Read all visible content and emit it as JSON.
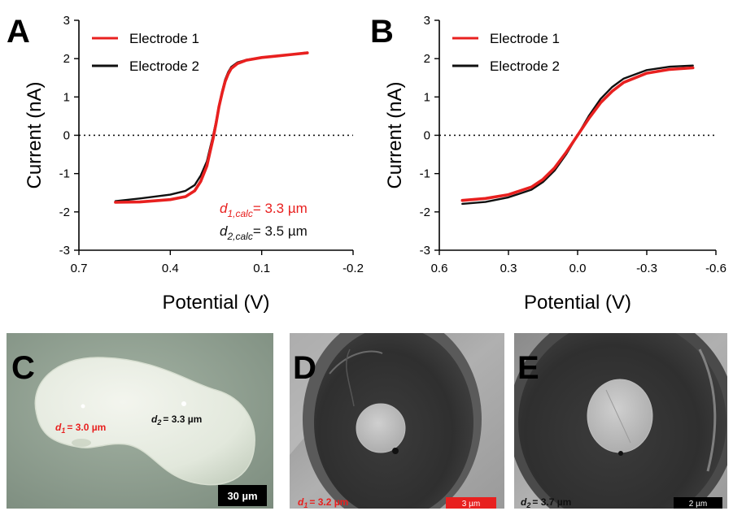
{
  "colors": {
    "electrode1": "#e8201f",
    "electrode2": "#101010"
  },
  "panels": {
    "A": {
      "letter": "A"
    },
    "B": {
      "letter": "B"
    },
    "C": {
      "letter": "C",
      "d1_label": "= 3.0 µm",
      "d2_label": "= 3.3 µm",
      "scale_bar": "30 µm"
    },
    "D": {
      "letter": "D",
      "d1_label": "= 3.2 µm",
      "scale_bar": "3 µm"
    },
    "E": {
      "letter": "E",
      "d2_label": "= 3.7 µm",
      "scale_bar": "2 µm"
    }
  },
  "calc_labels": {
    "d1_value": "= 3.3 µm",
    "d2_value": "= 3.5 µm",
    "d1_sub": "1,calc",
    "d2_sub": "2,calc"
  },
  "chart_data": [
    {
      "id": "A",
      "type": "line",
      "xlabel": "Potential (V)",
      "ylabel": "Current  (nA)",
      "xlim": [
        0.7,
        -0.2
      ],
      "ylim": [
        -3,
        3
      ],
      "xticks": [
        "0.7",
        "0.4",
        "0.1",
        "-0.2"
      ],
      "xtick_values": [
        0.7,
        0.4,
        0.1,
        -0.2
      ],
      "yticks": [
        "3",
        "2",
        "1",
        "0",
        "-1",
        "-2",
        "-3"
      ],
      "ytick_values": [
        3,
        2,
        1,
        0,
        -1,
        -2,
        -3
      ],
      "zero_line": "dotted",
      "legend": "top-left",
      "series": [
        {
          "name": "Electrode 1",
          "x": [
            0.58,
            0.5,
            0.4,
            0.35,
            0.32,
            0.3,
            0.28,
            0.27,
            0.26,
            0.25,
            0.24,
            0.23,
            0.22,
            0.21,
            0.2,
            0.18,
            0.15,
            0.1,
            0.05,
            0.0,
            -0.05
          ],
          "y": [
            -1.75,
            -1.74,
            -1.68,
            -1.6,
            -1.45,
            -1.2,
            -0.8,
            -0.45,
            -0.1,
            0.3,
            0.75,
            1.1,
            1.4,
            1.6,
            1.74,
            1.87,
            1.96,
            2.03,
            2.07,
            2.11,
            2.15
          ]
        },
        {
          "name": "Electrode 2",
          "x": [
            0.58,
            0.5,
            0.4,
            0.35,
            0.32,
            0.3,
            0.28,
            0.27,
            0.26,
            0.25,
            0.24,
            0.23,
            0.22,
            0.21,
            0.2,
            0.18,
            0.15,
            0.1,
            0.05,
            0.0,
            -0.05
          ],
          "y": [
            -1.72,
            -1.65,
            -1.55,
            -1.45,
            -1.3,
            -1.05,
            -0.68,
            -0.35,
            -0.02,
            0.35,
            0.78,
            1.15,
            1.45,
            1.65,
            1.78,
            1.9,
            1.97,
            2.03,
            2.07,
            2.11,
            2.16
          ]
        }
      ]
    },
    {
      "id": "B",
      "type": "line",
      "xlabel": "Potential (V)",
      "ylabel": "Current  (nA)",
      "xlim": [
        0.6,
        -0.6
      ],
      "ylim": [
        -3,
        3
      ],
      "xticks": [
        "0.6",
        "0.3",
        "0.0",
        "-0.3",
        "-0.6"
      ],
      "xtick_values": [
        0.6,
        0.3,
        0.0,
        -0.3,
        -0.6
      ],
      "yticks": [
        "3",
        "2",
        "1",
        "0",
        "-1",
        "-2",
        "-3"
      ],
      "ytick_values": [
        3,
        2,
        1,
        0,
        -1,
        -2,
        -3
      ],
      "zero_line": "dotted",
      "legend": "top-left",
      "series": [
        {
          "name": "Electrode 1",
          "x": [
            0.5,
            0.4,
            0.3,
            0.2,
            0.15,
            0.1,
            0.05,
            0.0,
            -0.05,
            -0.1,
            -0.15,
            -0.2,
            -0.3,
            -0.4,
            -0.5
          ],
          "y": [
            -1.7,
            -1.65,
            -1.55,
            -1.35,
            -1.15,
            -0.85,
            -0.45,
            0.0,
            0.45,
            0.85,
            1.15,
            1.38,
            1.62,
            1.72,
            1.76
          ]
        },
        {
          "name": "Electrode 2",
          "x": [
            0.5,
            0.4,
            0.3,
            0.2,
            0.15,
            0.1,
            0.05,
            0.0,
            -0.05,
            -0.1,
            -0.15,
            -0.2,
            -0.3,
            -0.4,
            -0.5
          ],
          "y": [
            -1.79,
            -1.74,
            -1.62,
            -1.42,
            -1.22,
            -0.92,
            -0.5,
            0.0,
            0.52,
            0.95,
            1.26,
            1.48,
            1.7,
            1.79,
            1.82
          ]
        }
      ]
    }
  ]
}
